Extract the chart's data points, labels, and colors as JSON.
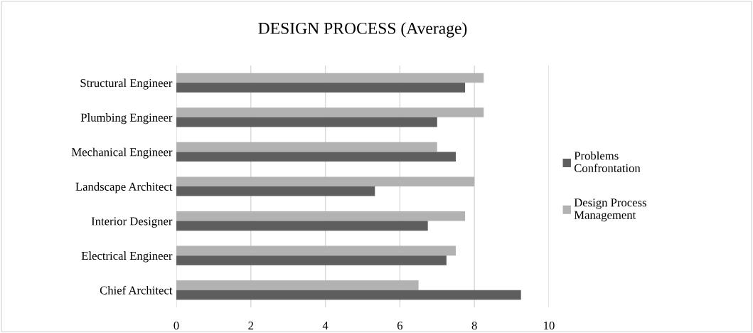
{
  "chart_data": {
    "type": "bar",
    "orientation": "horizontal",
    "title": "DESIGN PROCESS (Average)",
    "categories": [
      "Structural Engineer",
      "Plumbing Engineer",
      "Mechanical Engineer",
      "Landscape Architect",
      "Interior Designer",
      "Electrical Engineer",
      "Chief Architect"
    ],
    "series": [
      {
        "name": "Design Process Management",
        "color": "#b2b2b2",
        "values": [
          8.25,
          8.25,
          7.0,
          8.0,
          7.75,
          7.5,
          6.5
        ]
      },
      {
        "name": "Problems Confrontation",
        "color": "#5e5e5e",
        "values": [
          7.75,
          7.0,
          7.5,
          5.33,
          6.75,
          7.25,
          9.25
        ]
      }
    ],
    "xlim": [
      0,
      10
    ],
    "xticks": [
      0,
      2,
      4,
      6,
      8,
      10
    ],
    "grid": "x",
    "legend": "right"
  }
}
